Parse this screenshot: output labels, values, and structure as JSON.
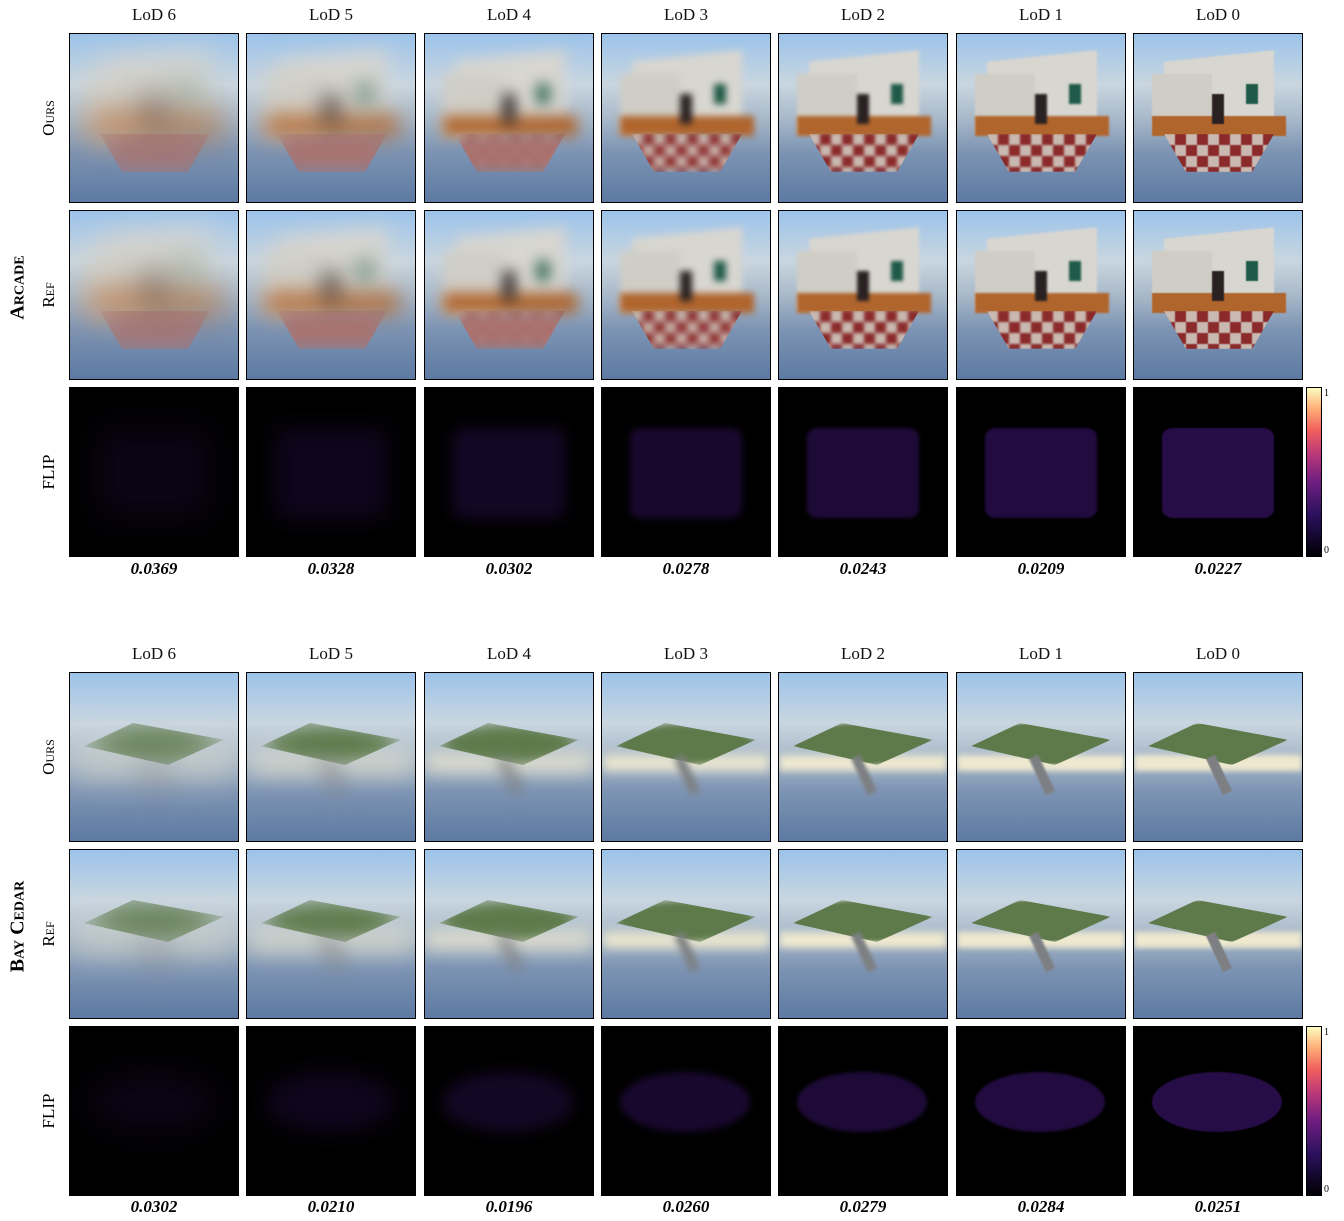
{
  "panels": [
    {
      "scene": "Arcade",
      "columns": [
        "LoD 6",
        "LoD 5",
        "LoD 4",
        "LoD 3",
        "LoD 2",
        "LoD 1",
        "LoD 0"
      ],
      "rows": [
        "Ours",
        "Ref",
        "FLIP"
      ],
      "scores": [
        "0.0369",
        "0.0328",
        "0.0302",
        "0.0278",
        "0.0243",
        "0.0209",
        "0.0227"
      ],
      "colorbar": {
        "max": "1",
        "min": "0"
      }
    },
    {
      "scene": "Bay Cedar",
      "columns": [
        "LoD 6",
        "LoD 5",
        "LoD 4",
        "LoD 3",
        "LoD 2",
        "LoD 1",
        "LoD 0"
      ],
      "rows": [
        "Ours",
        "Ref",
        "FLIP"
      ],
      "scores": [
        "0.0302",
        "0.0210",
        "0.0196",
        "0.0260",
        "0.0279",
        "0.0284",
        "0.0251"
      ],
      "colorbar": {
        "max": "1",
        "min": "0"
      }
    }
  ]
}
